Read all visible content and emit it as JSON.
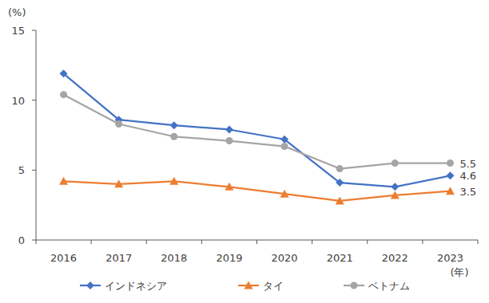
{
  "chart_data": {
    "type": "line",
    "y_label": "(%)",
    "x_label": "(年)",
    "categories": [
      "2016",
      "2017",
      "2018",
      "2019",
      "2020",
      "2021",
      "2022",
      "2023"
    ],
    "series": [
      {
        "name": "インドネシア",
        "color": "#4472c4",
        "marker": "diamond",
        "values": [
          11.9,
          8.6,
          8.2,
          7.9,
          7.2,
          4.1,
          3.8,
          4.6
        ],
        "value_labels": [
          null,
          null,
          null,
          null,
          null,
          null,
          null,
          "4.6"
        ]
      },
      {
        "name": "タイ",
        "color": "#ed7d31",
        "marker": "triangle",
        "values": [
          4.2,
          4.0,
          4.2,
          3.8,
          3.3,
          2.8,
          3.2,
          3.5
        ],
        "value_labels": [
          null,
          null,
          null,
          null,
          null,
          null,
          null,
          "3.5"
        ]
      },
      {
        "name": "ベトナム",
        "color": "#a5a5a5",
        "marker": "circle",
        "values": [
          10.4,
          8.3,
          7.4,
          7.1,
          6.7,
          5.1,
          5.5,
          5.5
        ],
        "value_labels": [
          null,
          null,
          null,
          null,
          null,
          null,
          null,
          "5.5"
        ]
      }
    ],
    "ylim": [
      0,
      15
    ],
    "yticks": [
      0,
      5,
      10,
      15
    ],
    "grid": false,
    "legend": "bottom",
    "data_labels": true
  }
}
